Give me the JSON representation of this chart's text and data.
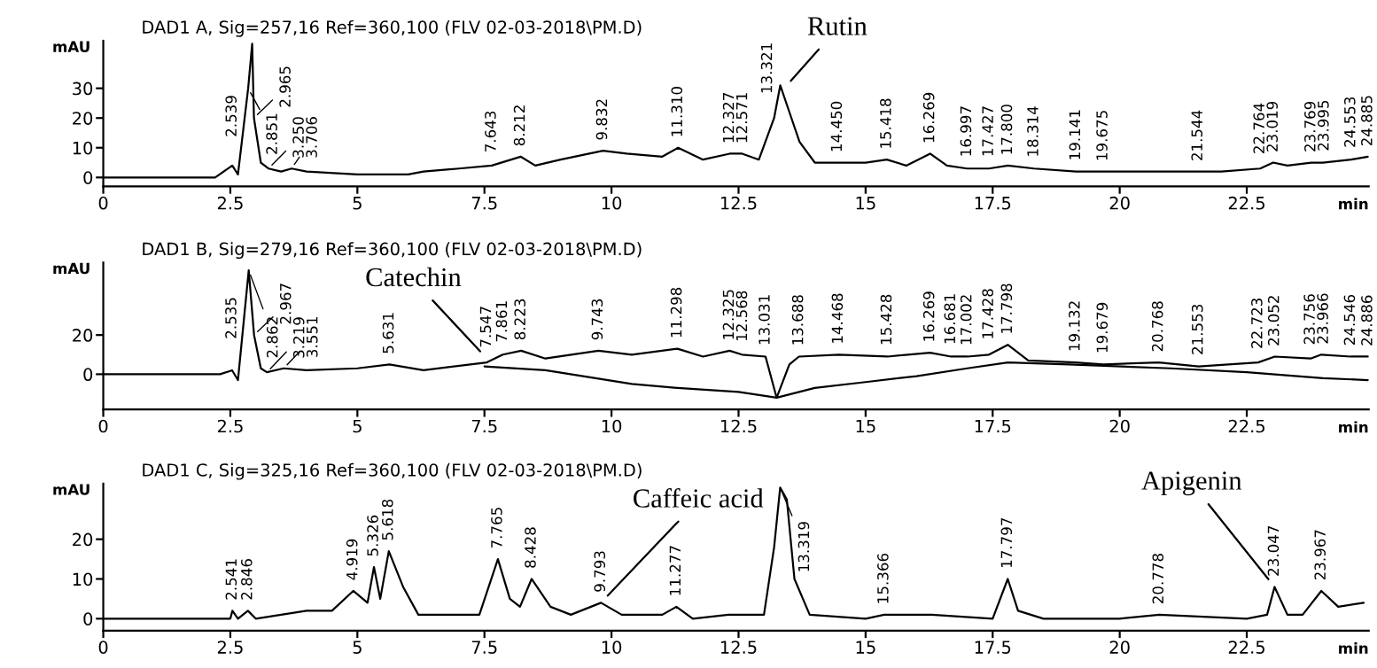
{
  "chart_data": [
    {
      "type": "line",
      "title": "DAD1 A, Sig=257,16 Ref=360,100 (FLV 02-03-2018\\PM.D)",
      "xlabel": "min",
      "ylabel": "mAU",
      "xlim": [
        0,
        24.9
      ],
      "xticks": [
        0,
        2.5,
        5,
        7.5,
        10,
        12.5,
        15,
        17.5,
        20,
        22.5
      ],
      "ylim": [
        -3,
        46
      ],
      "yticks": [
        0,
        10,
        20,
        30
      ],
      "grid": false,
      "series": [
        {
          "color": "#000000",
          "x": [
            0,
            2.2,
            2.539,
            2.65,
            2.851,
            2.93,
            2.965,
            3.1,
            3.25,
            3.5,
            3.706,
            4.0,
            5,
            6,
            6.3,
            7,
            7.643,
            8.212,
            8.5,
            9,
            9.832,
            10.3,
            11,
            11.31,
            11.8,
            12.327,
            12.571,
            12.9,
            13.2,
            13.321,
            13.5,
            13.7,
            14,
            14.45,
            15,
            15.418,
            15.8,
            16.269,
            16.6,
            16.997,
            17.427,
            17.8,
            18.314,
            19.141,
            19.675,
            21,
            21.544,
            22,
            22.764,
            23.019,
            23.3,
            23.769,
            23.995,
            24.553,
            24.885
          ],
          "values": [
            0,
            0,
            4,
            1,
            30,
            45,
            20,
            5,
            3,
            2,
            3,
            2,
            1,
            1,
            2,
            3,
            4,
            7,
            4,
            6,
            9,
            8,
            7,
            10,
            6,
            8,
            8,
            6,
            20,
            31,
            22,
            12,
            5,
            5,
            5,
            6,
            4,
            8,
            4,
            3,
            3,
            4,
            3,
            2,
            2,
            2,
            2,
            2,
            3,
            5,
            4,
            5,
            5,
            6,
            7
          ]
        }
      ],
      "annotations": [
        {
          "text": "Rutin",
          "x": 13.4,
          "y": 30
        },
        {
          "text": "2.539",
          "x": 2.539,
          "y": 4
        },
        {
          "text": "2.851",
          "x": 2.851,
          "y": 30
        },
        {
          "text": "2.965",
          "x": 2.965,
          "y": 20
        },
        {
          "text": "3.250",
          "x": 3.25,
          "y": 3
        },
        {
          "text": "3.706",
          "x": 3.706,
          "y": 3
        },
        {
          "text": "7.643",
          "x": 7.643,
          "y": 4
        },
        {
          "text": "8.212",
          "x": 8.212,
          "y": 7
        },
        {
          "text": "9.832",
          "x": 9.832,
          "y": 9
        },
        {
          "text": "11.310",
          "x": 11.31,
          "y": 10
        },
        {
          "text": "12.327",
          "x": 12.327,
          "y": 8
        },
        {
          "text": "12.571",
          "x": 12.571,
          "y": 8
        },
        {
          "text": "13.321",
          "x": 13.321,
          "y": 31
        },
        {
          "text": "14.450",
          "x": 14.45,
          "y": 5
        },
        {
          "text": "15.418",
          "x": 15.418,
          "y": 6
        },
        {
          "text": "16.269",
          "x": 16.269,
          "y": 8
        },
        {
          "text": "16.997",
          "x": 16.997,
          "y": 3
        },
        {
          "text": "17.427",
          "x": 17.427,
          "y": 3
        },
        {
          "text": "17.800",
          "x": 17.8,
          "y": 4
        },
        {
          "text": "18.314",
          "x": 18.314,
          "y": 3
        },
        {
          "text": "19.141",
          "x": 19.141,
          "y": 2
        },
        {
          "text": "19.675",
          "x": 19.675,
          "y": 2
        },
        {
          "text": "21.544",
          "x": 21.544,
          "y": 2
        },
        {
          "text": "22.764",
          "x": 22.764,
          "y": 3
        },
        {
          "text": "23.019",
          "x": 23.019,
          "y": 5
        },
        {
          "text": "23.769",
          "x": 23.769,
          "y": 5
        },
        {
          "text": "23.995",
          "x": 23.995,
          "y": 5
        },
        {
          "text": "24.553",
          "x": 24.553,
          "y": 6
        },
        {
          "text": "24.885",
          "x": 24.885,
          "y": 7
        }
      ]
    },
    {
      "type": "line",
      "title": "DAD1 B, Sig=279,16 Ref=360,100 (FLV 02-03-2018\\PM.D)",
      "xlabel": "min",
      "ylabel": "mAU",
      "xlim": [
        0,
        24.9
      ],
      "xticks": [
        0,
        2.5,
        5,
        7.5,
        10,
        12.5,
        15,
        17.5,
        20,
        22.5
      ],
      "ylim": [
        -18,
        57
      ],
      "yticks": [
        0,
        20
      ],
      "grid": false,
      "series": [
        {
          "color": "#000000",
          "x": [
            0,
            2.3,
            2.535,
            2.65,
            2.862,
            2.967,
            3.1,
            3.219,
            3.551,
            4,
            5,
            5.631,
            6.3,
            7.547,
            7.861,
            8.223,
            8.7,
            9.743,
            10.4,
            11.298,
            11.8,
            12.325,
            12.568,
            13.031,
            13.25,
            13.5,
            13.688,
            14.468,
            15.428,
            16.269,
            16.681,
            17.002,
            17.428,
            17.798,
            18.2,
            19.132,
            19.679,
            20.768,
            21.553,
            22.723,
            23.052,
            23.756,
            23.966,
            24.546,
            24.886
          ],
          "values": [
            0,
            0,
            2,
            -3,
            53,
            20,
            3,
            1,
            3,
            2,
            3,
            5,
            2,
            6,
            10,
            12,
            8,
            12,
            10,
            13,
            9,
            12,
            10,
            9,
            -12,
            5,
            9,
            10,
            9,
            11,
            9,
            9,
            10,
            15,
            7,
            6,
            5,
            6,
            4,
            6,
            9,
            8,
            10,
            9,
            9
          ]
        },
        {
          "color": "#000000",
          "x": [
            7.5,
            8.7,
            10.4,
            11.3,
            12.5,
            13.25,
            14,
            15,
            16,
            17,
            17.8,
            19,
            21,
            22.5,
            24,
            24.886
          ],
          "values": [
            4,
            2,
            -5,
            -7,
            -9,
            -12,
            -7,
            -4,
            -1,
            3,
            6,
            5,
            3,
            1,
            -2,
            -3
          ]
        }
      ],
      "annotations": [
        {
          "text": "Catechin",
          "x": 7.547,
          "y": 8
        },
        {
          "text": "2.535",
          "x": 2.535,
          "y": 2
        },
        {
          "text": "2.862",
          "x": 2.862,
          "y": 53
        },
        {
          "text": "2.967",
          "x": 2.967,
          "y": 20
        },
        {
          "text": "3.219",
          "x": 3.219,
          "y": 1
        },
        {
          "text": "3.551",
          "x": 3.551,
          "y": 3
        },
        {
          "text": "5.631",
          "x": 5.631,
          "y": 5
        },
        {
          "text": "7.547",
          "x": 7.547,
          "y": 6
        },
        {
          "text": "7.861",
          "x": 7.861,
          "y": 10
        },
        {
          "text": "8.223",
          "x": 8.223,
          "y": 12
        },
        {
          "text": "9.743",
          "x": 9.743,
          "y": 12
        },
        {
          "text": "11.298",
          "x": 11.298,
          "y": 13
        },
        {
          "text": "12.325",
          "x": 12.325,
          "y": 12
        },
        {
          "text": "12.568",
          "x": 12.568,
          "y": 10
        },
        {
          "text": "13.031",
          "x": 13.031,
          "y": 9
        },
        {
          "text": "13.688",
          "x": 13.688,
          "y": 9
        },
        {
          "text": "14.468",
          "x": 14.468,
          "y": 10
        },
        {
          "text": "15.428",
          "x": 15.428,
          "y": 9
        },
        {
          "text": "16.269",
          "x": 16.269,
          "y": 11
        },
        {
          "text": "16.681",
          "x": 16.681,
          "y": 9
        },
        {
          "text": "17.002",
          "x": 17.002,
          "y": 9
        },
        {
          "text": "17.428",
          "x": 17.428,
          "y": 10
        },
        {
          "text": "17.798",
          "x": 17.798,
          "y": 15
        },
        {
          "text": "19.132",
          "x": 19.132,
          "y": 6
        },
        {
          "text": "19.679",
          "x": 19.679,
          "y": 5
        },
        {
          "text": "20.768",
          "x": 20.768,
          "y": 6
        },
        {
          "text": "21.553",
          "x": 21.553,
          "y": 4
        },
        {
          "text": "22.723",
          "x": 22.723,
          "y": 6
        },
        {
          "text": "23.052",
          "x": 23.052,
          "y": 9
        },
        {
          "text": "23.756",
          "x": 23.756,
          "y": 8
        },
        {
          "text": "23.966",
          "x": 23.966,
          "y": 10
        },
        {
          "text": "24.546",
          "x": 24.546,
          "y": 9
        },
        {
          "text": "24.886",
          "x": 24.886,
          "y": 9
        }
      ]
    },
    {
      "type": "line",
      "title": "DAD1 C, Sig=325,16 Ref=360,100 (FLV 02-03-2018\\PM.D)",
      "xlabel": "min",
      "ylabel": "mAU",
      "xlim": [
        0,
        24.9
      ],
      "xticks": [
        0,
        2.5,
        5,
        7.5,
        10,
        12.5,
        15,
        17.5,
        20,
        22.5
      ],
      "ylim": [
        -3,
        34
      ],
      "yticks": [
        0,
        10,
        20
      ],
      "grid": false,
      "series": [
        {
          "color": "#000000",
          "x": [
            0,
            2.5,
            2.541,
            2.65,
            2.846,
            3,
            3.5,
            4,
            4.5,
            4.919,
            5.2,
            5.326,
            5.45,
            5.618,
            5.9,
            6.2,
            7,
            7.4,
            7.765,
            8.0,
            8.2,
            8.428,
            8.8,
            9.2,
            9.793,
            10.2,
            11,
            11.277,
            11.6,
            12.3,
            13,
            13.2,
            13.319,
            13.45,
            13.6,
            13.9,
            15,
            15.366,
            16.3,
            17.5,
            17.797,
            18,
            18.5,
            20,
            20.778,
            22.5,
            22.9,
            23.047,
            23.3,
            23.6,
            23.967,
            24.3,
            24.8
          ],
          "values": [
            0,
            0,
            2,
            0,
            2,
            0,
            1,
            2,
            2,
            7,
            4,
            13,
            5,
            17,
            8,
            1,
            1,
            1,
            15,
            5,
            3,
            10,
            3,
            1,
            4,
            1,
            1,
            3,
            0,
            1,
            1,
            18,
            33,
            30,
            10,
            1,
            0,
            1,
            1,
            0,
            10,
            2,
            0,
            0,
            1,
            0,
            1,
            8,
            1,
            1,
            7,
            3,
            4
          ]
        }
      ],
      "annotations": [
        {
          "text": "Caffeic acid",
          "x": 9.793,
          "y": 4
        },
        {
          "text": "Apigenin",
          "x": 23.047,
          "y": 8
        },
        {
          "text": "2.541",
          "x": 2.541,
          "y": 2
        },
        {
          "text": "2.846",
          "x": 2.846,
          "y": 2
        },
        {
          "text": "4.919",
          "x": 4.919,
          "y": 7
        },
        {
          "text": "5.326",
          "x": 5.326,
          "y": 13
        },
        {
          "text": "5.618",
          "x": 5.618,
          "y": 17
        },
        {
          "text": "7.765",
          "x": 7.765,
          "y": 15
        },
        {
          "text": "8.428",
          "x": 8.428,
          "y": 10
        },
        {
          "text": "9.793",
          "x": 9.793,
          "y": 4
        },
        {
          "text": "11.277",
          "x": 11.277,
          "y": 3
        },
        {
          "text": "13.319",
          "x": 13.319,
          "y": 33
        },
        {
          "text": "15.366",
          "x": 15.366,
          "y": 1
        },
        {
          "text": "17.797",
          "x": 17.797,
          "y": 10
        },
        {
          "text": "20.778",
          "x": 20.778,
          "y": 1
        },
        {
          "text": "23.047",
          "x": 23.047,
          "y": 8
        },
        {
          "text": "23.967",
          "x": 23.967,
          "y": 7
        }
      ]
    }
  ]
}
